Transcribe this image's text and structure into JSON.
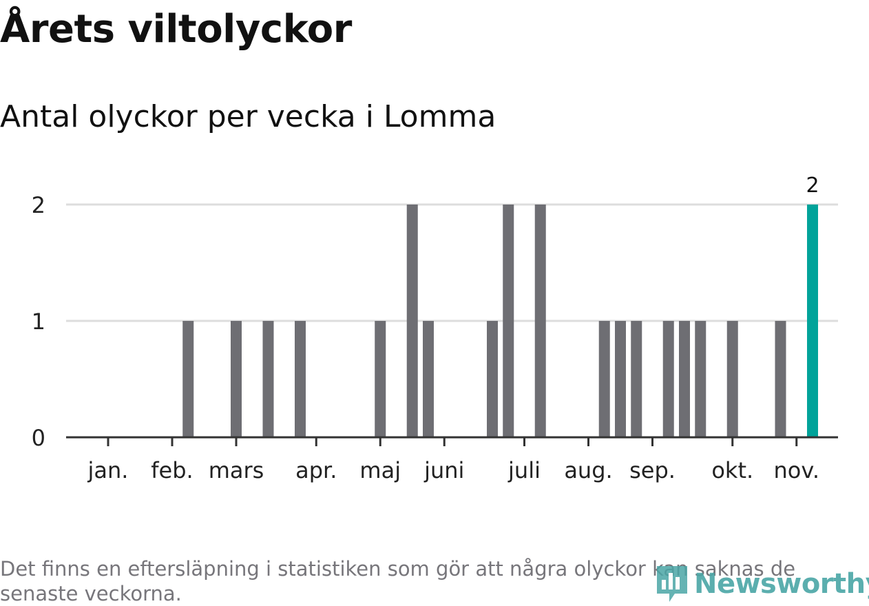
{
  "colors": {
    "bar": "#6e6e73",
    "highlight": "#00a39a",
    "grid": "#dddddd",
    "axis": "#333333",
    "footnote": "#77767b",
    "logo": "#4aa6a6"
  },
  "footnote": "Det finns en eftersläpning i statistiken som gör att några olyckor kan saknas de senaste veckorna.",
  "logo_text": "Newsworthy",
  "chart_data": {
    "type": "bar",
    "title": "Årets viltolyckor",
    "subtitle": "Antal olyckor per vecka i Lomma",
    "xlabel": "",
    "ylabel": "",
    "ylim": [
      0,
      2
    ],
    "y_ticks": [
      "0",
      "1",
      "2"
    ],
    "grid": true,
    "x_range": [
      1,
      48
    ],
    "x_ticks": [
      {
        "week": 1,
        "label": "jan."
      },
      {
        "week": 5,
        "label": "feb."
      },
      {
        "week": 9,
        "label": "mars"
      },
      {
        "week": 14,
        "label": "apr."
      },
      {
        "week": 18,
        "label": "maj"
      },
      {
        "week": 22,
        "label": "juni"
      },
      {
        "week": 27,
        "label": "juli"
      },
      {
        "week": 31,
        "label": "aug."
      },
      {
        "week": 35,
        "label": "sep."
      },
      {
        "week": 40,
        "label": "okt."
      },
      {
        "week": 44,
        "label": "nov."
      }
    ],
    "weeks": [
      6,
      9,
      11,
      13,
      18,
      20,
      21,
      25,
      26,
      28,
      32,
      33,
      34,
      36,
      37,
      38,
      40,
      43,
      45
    ],
    "values": [
      1,
      1,
      1,
      1,
      1,
      2,
      1,
      1,
      2,
      2,
      1,
      1,
      1,
      1,
      1,
      1,
      1,
      1,
      2
    ],
    "highlight": {
      "week": 45,
      "value": 2,
      "label": "2"
    }
  }
}
